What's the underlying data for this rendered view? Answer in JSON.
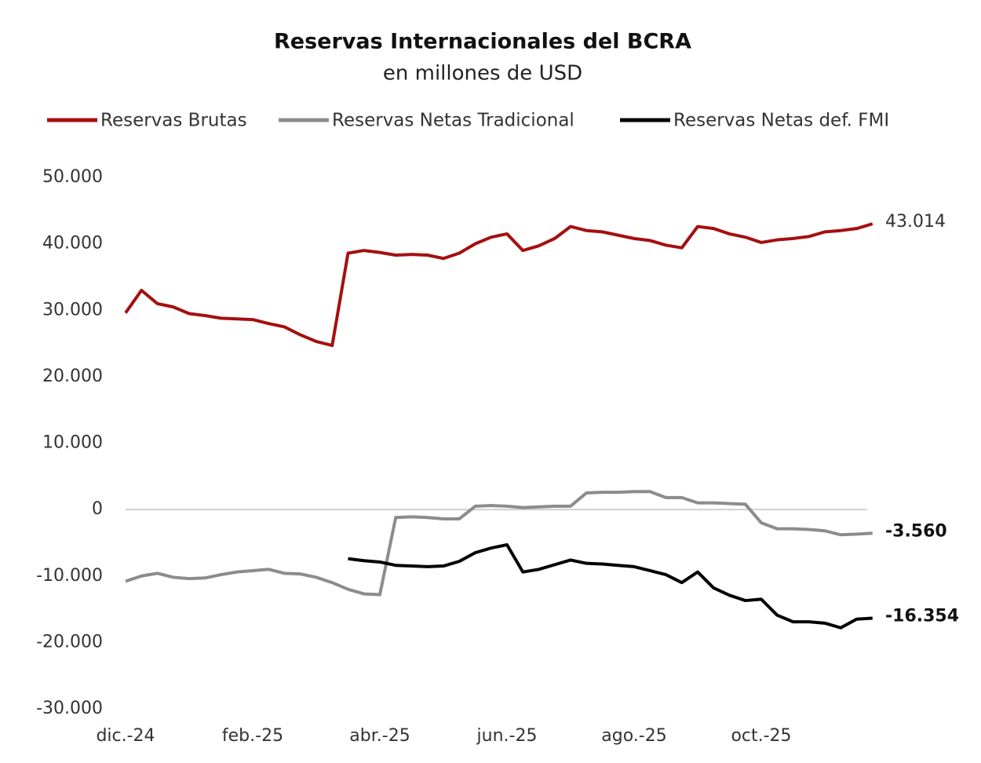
{
  "chart_data": {
    "type": "line",
    "title": "Reservas Internacionales del BCRA",
    "subtitle": "en millones de USD",
    "categories": [
      "dic.-24",
      null,
      null,
      null,
      null,
      null,
      null,
      null,
      "feb.-25",
      null,
      null,
      null,
      null,
      null,
      null,
      null,
      "abr.-25",
      null,
      null,
      null,
      null,
      null,
      null,
      null,
      "jun.-25",
      null,
      null,
      null,
      null,
      null,
      null,
      null,
      "ago.-25",
      null,
      null,
      null,
      null,
      null,
      null,
      null,
      "oct.-25",
      null,
      null,
      null,
      null,
      null,
      null,
      null
    ],
    "series": [
      {
        "name": "Reservas Brutas",
        "color": "#a50f0f",
        "values": [
          29600,
          33000,
          31000,
          30500,
          29500,
          29200,
          28800,
          28700,
          28600,
          28000,
          27500,
          26300,
          25300,
          24700,
          38600,
          39000,
          38700,
          38300,
          38400,
          38300,
          37800,
          38600,
          40000,
          41000,
          41500,
          39000,
          39700,
          40800,
          42600,
          42000,
          41800,
          41300,
          40800,
          40500,
          39800,
          39400,
          42600,
          42300,
          41500,
          41000,
          40200,
          40600,
          40800,
          41100,
          41800,
          42000,
          42300,
          43014
        ],
        "value_labels": [
          null,
          null,
          null,
          null,
          null,
          null,
          null,
          null,
          null,
          null,
          null,
          null,
          null,
          null,
          null,
          null,
          null,
          null,
          null,
          null,
          null,
          null,
          null,
          null,
          null,
          null,
          null,
          null,
          null,
          null,
          null,
          null,
          null,
          null,
          null,
          null,
          null,
          null,
          null,
          null,
          null,
          null,
          null,
          null,
          null,
          null,
          null,
          "43.014"
        ]
      },
      {
        "name": "Reservas Netas Tradicional",
        "color": "#8c8c8c",
        "values": [
          -10800,
          -10000,
          -9600,
          -10200,
          -10400,
          -10300,
          -9800,
          -9400,
          -9200,
          -9000,
          -9600,
          -9700,
          -10200,
          -11000,
          -12000,
          -12700,
          -12800,
          -1200,
          -1100,
          -1200,
          -1400,
          -1400,
          500,
          600,
          500,
          300,
          400,
          500,
          500,
          2500,
          2600,
          2600,
          2700,
          2700,
          1800,
          1800,
          1000,
          1000,
          900,
          800,
          -2000,
          -2900,
          -2900,
          -3000,
          -3200,
          -3800,
          -3700,
          -3560
        ],
        "value_labels": [
          null,
          null,
          null,
          null,
          null,
          null,
          null,
          null,
          null,
          null,
          null,
          null,
          null,
          null,
          null,
          null,
          null,
          null,
          null,
          null,
          null,
          null,
          null,
          null,
          null,
          null,
          null,
          null,
          null,
          null,
          null,
          null,
          null,
          null,
          null,
          null,
          null,
          null,
          null,
          null,
          null,
          null,
          null,
          null,
          null,
          null,
          null,
          "-3.560"
        ]
      },
      {
        "name": "Reservas Netas def. FMI",
        "color": "#000000",
        "values": [
          null,
          null,
          null,
          null,
          null,
          null,
          null,
          null,
          null,
          null,
          null,
          null,
          null,
          null,
          -7400,
          -7700,
          -7900,
          -8400,
          -8500,
          -8600,
          -8500,
          -7800,
          -6500,
          -5800,
          -5300,
          -9400,
          -9000,
          -8300,
          -7600,
          -8100,
          -8200,
          -8400,
          -8600,
          -9200,
          -9800,
          -11000,
          -9400,
          -11800,
          -12900,
          -13700,
          -13500,
          -15900,
          -16900,
          -16900,
          -17100,
          -17800,
          -16500,
          -16354
        ],
        "value_labels": [
          null,
          null,
          null,
          null,
          null,
          null,
          null,
          null,
          null,
          null,
          null,
          null,
          null,
          null,
          null,
          null,
          null,
          null,
          null,
          null,
          null,
          null,
          null,
          null,
          null,
          null,
          null,
          null,
          null,
          null,
          null,
          null,
          null,
          null,
          null,
          null,
          null,
          null,
          null,
          null,
          null,
          null,
          null,
          null,
          null,
          null,
          null,
          "-16.354"
        ]
      }
    ],
    "ylim": [
      -30000,
      50000
    ],
    "yticks": [
      {
        "value": 50000,
        "label": "50.000"
      },
      {
        "value": 40000,
        "label": "40.000"
      },
      {
        "value": 30000,
        "label": "30.000"
      },
      {
        "value": 20000,
        "label": "20.000"
      },
      {
        "value": 10000,
        "label": "10.000"
      },
      0,
      {
        "value": -10000,
        "label": "-10.000"
      },
      {
        "value": -20000,
        "label": "-20.000"
      },
      {
        "value": -30000,
        "label": "-30.000"
      }
    ],
    "grid": false
  }
}
